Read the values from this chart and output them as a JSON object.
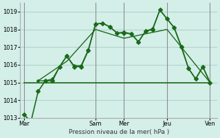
{
  "bg_color": "#d4eee8",
  "grid_color": "#b0d4cc",
  "line_color": "#1a6b1a",
  "ylabel": "Pression niveau de la mer( hPa )",
  "ylim": [
    1013,
    1019.5
  ],
  "yticks": [
    1013,
    1014,
    1015,
    1016,
    1017,
    1018,
    1019
  ],
  "xtick_labels": [
    "Mar",
    "Sam",
    "Mer",
    "Jeu",
    "Ven"
  ],
  "xtick_positions": [
    0,
    10,
    14,
    20,
    26
  ],
  "lines": [
    {
      "x": [
        0,
        1,
        2,
        3,
        4,
        5,
        6,
        7,
        8,
        9,
        10,
        11,
        12,
        13,
        14,
        15,
        16,
        17,
        18,
        19,
        20,
        21,
        22,
        23,
        24,
        25,
        26
      ],
      "y": [
        1013.2,
        1012.8,
        1014.5,
        1015.1,
        1015.1,
        1015.9,
        1016.5,
        1015.9,
        1015.9,
        1016.8,
        1018.3,
        1018.35,
        1018.15,
        1017.8,
        1017.8,
        1017.75,
        1017.3,
        1017.9,
        1018.0,
        1019.1,
        1018.6,
        1018.1,
        1017.0,
        1015.8,
        1015.2,
        1015.9,
        1015.0
      ],
      "marker": "D",
      "linewidth": 1.2,
      "markersize": 3
    },
    {
      "x": [
        2,
        3,
        4,
        5,
        6,
        7,
        8,
        9,
        10,
        11,
        12,
        13,
        14,
        15,
        16,
        17,
        18,
        19,
        20,
        21,
        22,
        23,
        24,
        25,
        26
      ],
      "y": [
        1015.1,
        1015.1,
        1015.2,
        1015.9,
        1016.5,
        1015.95,
        1015.95,
        1016.85,
        1018.3,
        1018.35,
        1018.15,
        1017.8,
        1017.85,
        1017.75,
        1017.3,
        1017.9,
        1018.05,
        1019.1,
        1018.6,
        1018.1,
        1017.05,
        1015.8,
        1015.2,
        1015.9,
        1015.0
      ],
      "marker": "D",
      "linewidth": 1.0,
      "markersize": 2
    },
    {
      "x": [
        2,
        6,
        10,
        14,
        20,
        26
      ],
      "y": [
        1015.1,
        1016.2,
        1018.0,
        1017.5,
        1018.0,
        1015.0
      ],
      "marker": null,
      "linewidth": 1.0,
      "markersize": 0
    },
    {
      "x": [
        0,
        26
      ],
      "y": [
        1015.0,
        1015.0
      ],
      "marker": null,
      "linewidth": 1.2,
      "markersize": 0
    }
  ]
}
